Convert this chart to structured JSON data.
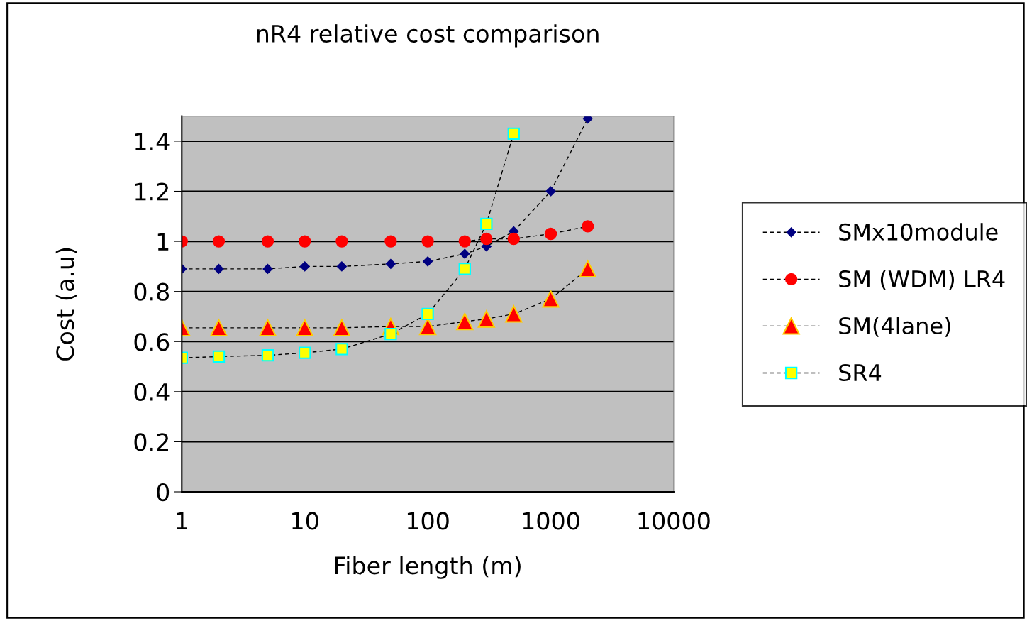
{
  "chart_data": {
    "type": "line",
    "title": "nR4 relative cost comparison",
    "xlabel": "Fiber length (m)",
    "ylabel": "Cost (a.u)",
    "x": [
      1,
      2,
      5,
      10,
      20,
      50,
      100,
      200,
      300,
      500,
      1000,
      2000
    ],
    "series": [
      {
        "name": "SMx10module",
        "color": "#000080",
        "marker": "diamond",
        "values": [
          0.89,
          0.89,
          0.89,
          0.9,
          0.9,
          0.91,
          0.92,
          0.95,
          0.98,
          1.04,
          1.2,
          1.49
        ]
      },
      {
        "name": "SM (WDM) LR4",
        "color": "#ff0000",
        "marker": "circle",
        "values": [
          1,
          1,
          1,
          1,
          1,
          1,
          1,
          1,
          1.01,
          1.01,
          1.03,
          1.06
        ]
      },
      {
        "name": "SM(4lane)",
        "color": "#ff0000",
        "marker": "triangle",
        "values": [
          0.655,
          0.655,
          0.655,
          0.655,
          0.655,
          0.66,
          0.66,
          0.68,
          0.69,
          0.71,
          0.77,
          0.89
        ]
      },
      {
        "name": "SR4",
        "color": "#ffff00",
        "marker": "square",
        "values": [
          0.535,
          0.54,
          0.545,
          0.555,
          0.57,
          0.63,
          0.71,
          0.89,
          1.07,
          1.43,
          null,
          null
        ]
      }
    ],
    "log": "x",
    "xlim": [
      1,
      10000
    ],
    "xticks": [
      1,
      10,
      100,
      1000,
      10000
    ],
    "ylim": [
      0,
      1.5
    ],
    "yticks": [
      0,
      0.2,
      0.4,
      0.6,
      0.8,
      1,
      1.2,
      1.4
    ],
    "grid": "y",
    "legend": "right",
    "line_style": "dashed"
  }
}
